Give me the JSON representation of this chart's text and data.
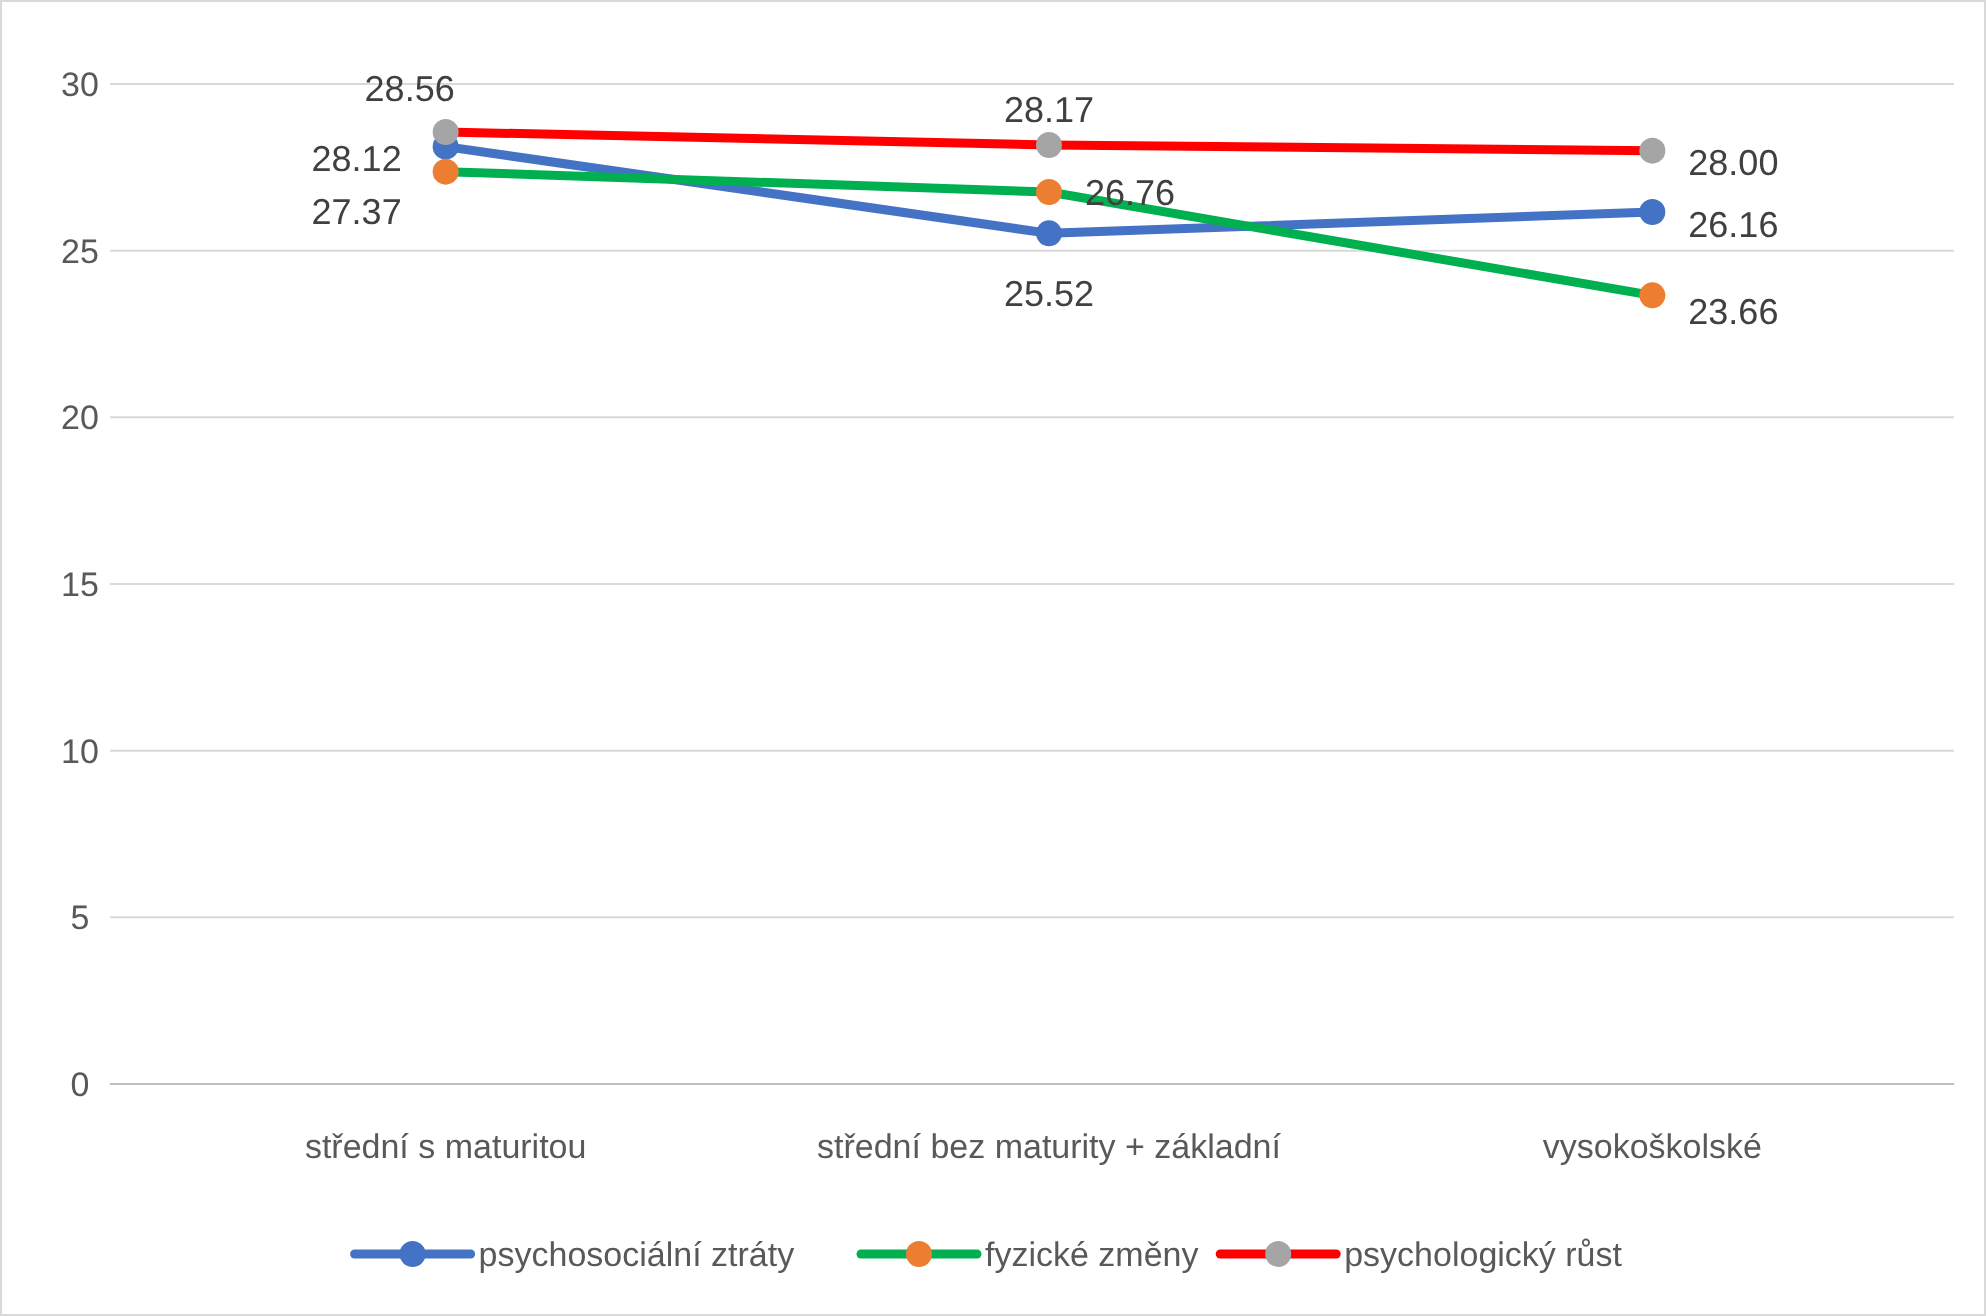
{
  "chart_data": {
    "type": "line",
    "categories": [
      "střední s maturitou",
      "střední bez maturity + základní",
      "vysokoškolské"
    ],
    "series": [
      {
        "name": "psychosociální ztráty",
        "color": "#4472c4",
        "colors": [
          "#4472c4",
          "#4472c4",
          "#4472c4"
        ],
        "values": [
          28.12,
          25.52,
          26.16
        ],
        "value_labels": [
          "28.12",
          "25.52",
          "26.16"
        ]
      },
      {
        "name": "fyzické změny",
        "color": "#00b050",
        "colors": [
          "#ed7d31",
          "#ed7d31",
          "#ed7d31"
        ],
        "values": [
          27.37,
          26.76,
          23.66
        ],
        "value_labels": [
          "27.37",
          "26.76",
          "23.66"
        ]
      },
      {
        "name": "psychologický růst",
        "color": "#ff0000",
        "colors": [
          "#a5a5a5",
          "#a5a5a5",
          "#a5a5a5"
        ],
        "values": [
          28.56,
          28.17,
          28.0
        ],
        "value_labels": [
          "28.56",
          "28.17",
          "28.00"
        ]
      }
    ],
    "ylim": [
      0,
      30
    ],
    "yticks": [
      0,
      5,
      10,
      15,
      20,
      25,
      30
    ],
    "grid": "y",
    "legend": "bottom",
    "marker": "circle",
    "line_style": "solid"
  }
}
